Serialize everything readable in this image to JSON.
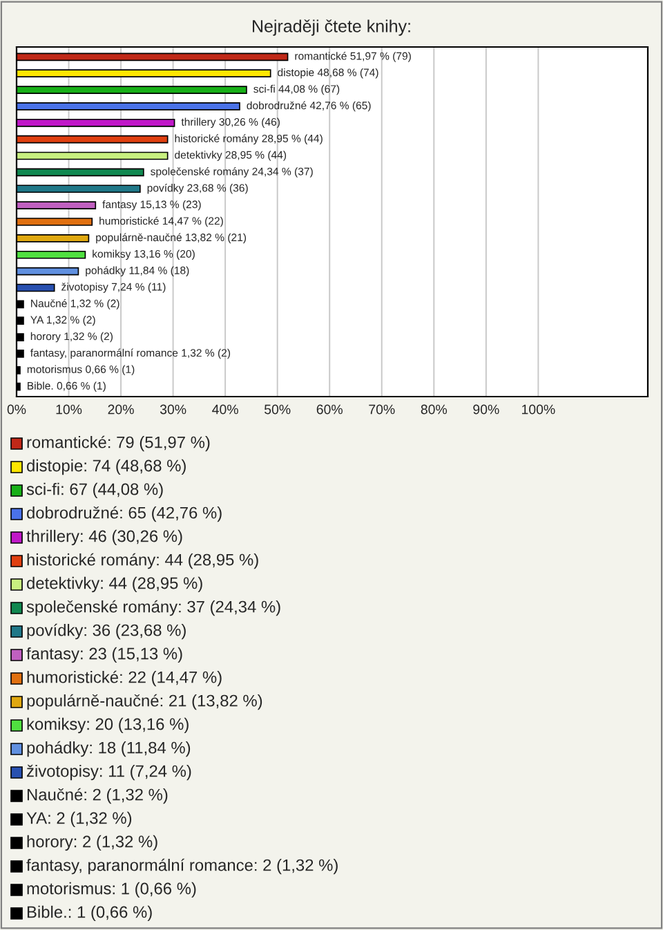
{
  "chart_data": {
    "type": "bar",
    "orientation": "horizontal",
    "title": "Nejraději čtete knihy:",
    "categories": [
      null,
      null,
      null,
      null,
      null,
      null,
      null,
      null,
      null,
      null,
      null,
      null,
      null,
      null,
      null,
      null,
      null,
      null,
      null,
      null,
      null
    ],
    "values": [
      51.97,
      48.68,
      44.08,
      42.76,
      30.26,
      28.95,
      28.95,
      24.34,
      23.68,
      15.13,
      14.47,
      13.82,
      13.16,
      11.84,
      7.24,
      1.32,
      1.32,
      1.32,
      1.32,
      0.66,
      0.66
    ],
    "colors": [
      "#c02818",
      "#ffe600",
      "#18b018",
      "#4a72e8",
      "#c018c8",
      "#e04010",
      "#c8f080",
      "#108850",
      "#207888",
      "#c060c0",
      "#e07010",
      "#e0a810",
      "#50e040",
      "#6090e0",
      "#2850b0",
      "#000000",
      "#000000",
      "#000000",
      "#000000",
      "#000000",
      "#000000"
    ],
    "value_labels": [
      "romantické 51,97 % (79)",
      "distopie 48,68 % (74)",
      "sci-fi 44,08 % (67)",
      "dobrodružné 42,76 % (65)",
      "thrillery 30,26 % (46)",
      "historické romány 28,95 % (44)",
      "detektivky 28,95 % (44)",
      "společenské romány 24,34 % (37)",
      "povídky 23,68 % (36)",
      "fantasy 15,13 % (23)",
      "humoristické 14,47 % (22)",
      "populárně-naučné 13,82 % (21)",
      "komiksy 13,16 % (20)",
      "pohádky 11,84 % (18)",
      "životopisy 7,24 % (11)",
      "Naučné 1,32 % (2)",
      "YA 1,32 % (2)",
      "horory 1,32 % (2)",
      "fantasy, paranormální romance 1,32 % (2)",
      "motorismus 0,66 % (1)",
      "Bible. 0,66 % (1)"
    ],
    "annotations": [
      "romantické: 79 (51,97 %)",
      "distopie: 74 (48,68 %)",
      "sci-fi: 67 (44,08 %)",
      "dobrodružné: 65 (42,76 %)",
      "thrillery: 46 (30,26 %)",
      "historické romány: 44 (28,95 %)",
      "detektivky: 44 (28,95 %)",
      "společenské romány: 37 (24,34 %)",
      "povídky: 36 (23,68 %)",
      "fantasy: 23 (15,13 %)",
      "humoristické: 22 (14,47 %)",
      "populárně-naučné: 21 (13,82 %)",
      "komiksy: 20 (13,16 %)",
      "pohádky: 18 (11,84 %)",
      "životopisy: 11 (7,24 %)",
      "Naučné: 2 (1,32 %)",
      "YA: 2 (1,32 %)",
      "horory: 2 (1,32 %)",
      "fantasy, paranormální romance: 2 (1,32 %)",
      "motorismus: 1 (0,66 %)",
      "Bible.: 1 (0,66 %)"
    ],
    "xlim": [
      0,
      121
    ],
    "xticks": [
      {
        "value": 0,
        "label": "0%"
      },
      {
        "value": 10,
        "label": "10%"
      },
      {
        "value": 20,
        "label": "20%"
      },
      {
        "value": 30,
        "label": "30%"
      },
      {
        "value": 40,
        "label": "40%"
      },
      {
        "value": 50,
        "label": "50%"
      },
      {
        "value": 60,
        "label": "60%"
      },
      {
        "value": 70,
        "label": "70%"
      },
      {
        "value": 80,
        "label": "80%"
      },
      {
        "value": 90,
        "label": "90%"
      },
      {
        "value": 100,
        "label": "100%"
      }
    ],
    "grid": "x",
    "tick_labels": "x"
  }
}
